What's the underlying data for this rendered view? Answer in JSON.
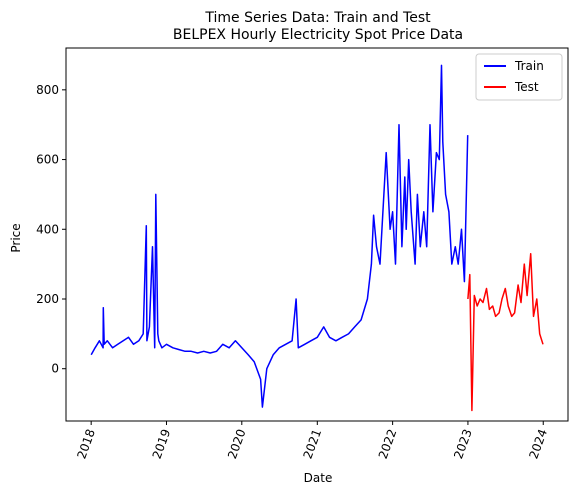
{
  "chart_data": {
    "type": "line",
    "title": "Time Series Data: Train and Test",
    "subtitle": "BELPEX Hourly Electricity Spot Price Data",
    "xlabel": "Date",
    "ylabel": "Price",
    "xlim": [
      "2017-09-01",
      "2024-04-30"
    ],
    "ylim": [
      -150,
      920
    ],
    "x_ticks": [
      "2018",
      "2019",
      "2020",
      "2021",
      "2022",
      "2023",
      "2024"
    ],
    "y_ticks": [
      0,
      200,
      400,
      600,
      800
    ],
    "grid": false,
    "legend_position": "top-right",
    "series": [
      {
        "name": "Train",
        "color": "#0000ff",
        "x": [
          "2018-01-01",
          "2018-01-20",
          "2018-02-10",
          "2018-02-28",
          "2018-03-01",
          "2018-03-05",
          "2018-03-20",
          "2018-04-15",
          "2018-05-10",
          "2018-06-05",
          "2018-07-01",
          "2018-07-25",
          "2018-08-20",
          "2018-09-10",
          "2018-09-25",
          "2018-09-28",
          "2018-10-10",
          "2018-10-25",
          "2018-11-05",
          "2018-11-10",
          "2018-11-20",
          "2018-11-25",
          "2018-12-10",
          "2019-01-01",
          "2019-02-01",
          "2019-03-01",
          "2019-04-01",
          "2019-05-01",
          "2019-06-01",
          "2019-07-01",
          "2019-08-01",
          "2019-09-01",
          "2019-10-01",
          "2019-11-01",
          "2019-12-01",
          "2020-01-01",
          "2020-02-01",
          "2020-03-01",
          "2020-04-01",
          "2020-04-10",
          "2020-05-01",
          "2020-06-01",
          "2020-07-01",
          "2020-08-01",
          "2020-09-01",
          "2020-09-20",
          "2020-10-01",
          "2020-11-01",
          "2020-12-01",
          "2021-01-01",
          "2021-02-01",
          "2021-03-01",
          "2021-04-01",
          "2021-05-01",
          "2021-06-01",
          "2021-07-01",
          "2021-08-01",
          "2021-09-01",
          "2021-09-20",
          "2021-10-01",
          "2021-10-15",
          "2021-11-01",
          "2021-12-01",
          "2021-12-20",
          "2022-01-01",
          "2022-01-15",
          "2022-02-01",
          "2022-02-15",
          "2022-03-01",
          "2022-03-08",
          "2022-03-20",
          "2022-04-01",
          "2022-04-20",
          "2022-05-01",
          "2022-05-15",
          "2022-06-01",
          "2022-06-15",
          "2022-07-01",
          "2022-07-15",
          "2022-08-01",
          "2022-08-15",
          "2022-08-26",
          "2022-09-01",
          "2022-09-15",
          "2022-10-01",
          "2022-10-15",
          "2022-11-01",
          "2022-11-15",
          "2022-12-01",
          "2022-12-15",
          "2022-12-31"
        ],
        "y": [
          40,
          60,
          80,
          60,
          175,
          70,
          80,
          60,
          70,
          80,
          90,
          70,
          80,
          100,
          410,
          80,
          120,
          350,
          60,
          500,
          100,
          80,
          60,
          70,
          60,
          55,
          50,
          50,
          45,
          50,
          45,
          50,
          70,
          60,
          80,
          60,
          40,
          20,
          -30,
          -110,
          0,
          40,
          60,
          70,
          80,
          200,
          60,
          70,
          80,
          90,
          120,
          90,
          80,
          90,
          100,
          120,
          140,
          200,
          300,
          440,
          350,
          300,
          620,
          400,
          450,
          300,
          700,
          350,
          550,
          400,
          600,
          450,
          300,
          500,
          350,
          450,
          350,
          700,
          450,
          620,
          600,
          870,
          650,
          500,
          450,
          300,
          350,
          300,
          400,
          250,
          670
        ]
      },
      {
        "name": "Test",
        "color": "#ff0000",
        "x": [
          "2023-01-01",
          "2023-01-10",
          "2023-01-20",
          "2023-02-01",
          "2023-02-15",
          "2023-03-01",
          "2023-03-15",
          "2023-04-01",
          "2023-04-15",
          "2023-05-01",
          "2023-05-15",
          "2023-06-01",
          "2023-06-15",
          "2023-07-01",
          "2023-07-15",
          "2023-08-01",
          "2023-08-15",
          "2023-09-01",
          "2023-09-15",
          "2023-10-01",
          "2023-10-15",
          "2023-11-01",
          "2023-11-15",
          "2023-12-01",
          "2023-12-15",
          "2023-12-31"
        ],
        "y": [
          200,
          270,
          -120,
          210,
          180,
          200,
          190,
          230,
          170,
          180,
          150,
          160,
          200,
          230,
          180,
          150,
          160,
          240,
          190,
          300,
          210,
          330,
          150,
          200,
          100,
          70
        ]
      }
    ]
  }
}
